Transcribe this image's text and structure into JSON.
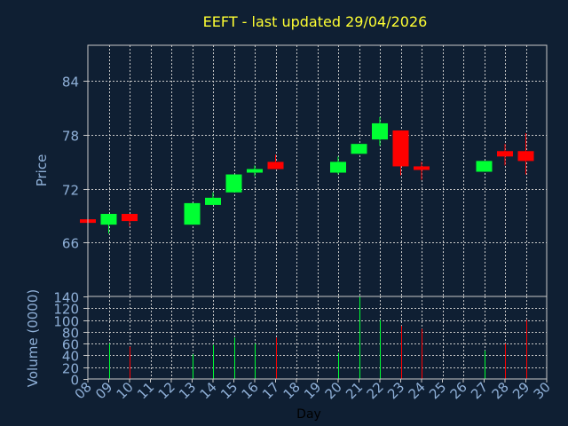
{
  "chart_data": [
    {
      "type": "candlestick",
      "title": "EEFT - last updated 29/04/2026",
      "ylabel": "Price",
      "ylim": [
        60,
        88
      ],
      "yticks": [
        66,
        72,
        78,
        84
      ],
      "grid": true,
      "colors": {
        "up": "#00ff33",
        "down": "#ff0000",
        "title": "#ffff33",
        "axis_text": "#8fb0d8",
        "grid": "#c8c8c8",
        "background": "#0f1f33"
      },
      "candles": [
        {
          "day": 8,
          "open": 68.6,
          "close": 68.2,
          "high": 68.6,
          "low": 68.2
        },
        {
          "day": 9,
          "open": 68.0,
          "close": 69.2,
          "high": 69.2,
          "low": 67.0
        },
        {
          "day": 10,
          "open": 69.2,
          "close": 68.4,
          "high": 69.2,
          "low": 67.8
        },
        {
          "day": 13,
          "open": 68.0,
          "close": 70.4,
          "high": 70.4,
          "low": 68.0
        },
        {
          "day": 14,
          "open": 70.2,
          "close": 71.0,
          "high": 71.6,
          "low": 70.2
        },
        {
          "day": 15,
          "open": 71.6,
          "close": 73.6,
          "high": 73.6,
          "low": 71.6
        },
        {
          "day": 16,
          "open": 73.8,
          "close": 74.2,
          "high": 74.6,
          "low": 73.4
        },
        {
          "day": 17,
          "open": 75.0,
          "close": 74.2,
          "high": 75.8,
          "low": 74.2
        },
        {
          "day": 20,
          "open": 73.8,
          "close": 75.0,
          "high": 75.6,
          "low": 73.6
        },
        {
          "day": 21,
          "open": 75.9,
          "close": 77.0,
          "high": 77.0,
          "low": 75.9
        },
        {
          "day": 22,
          "open": 77.5,
          "close": 79.3,
          "high": 80.0,
          "low": 76.8
        },
        {
          "day": 23,
          "open": 78.5,
          "close": 74.5,
          "high": 78.5,
          "low": 73.5
        },
        {
          "day": 24,
          "open": 74.5,
          "close": 74.1,
          "high": 75.0,
          "low": 73.0
        },
        {
          "day": 27,
          "open": 73.9,
          "close": 75.1,
          "high": 75.1,
          "low": 73.9
        },
        {
          "day": 28,
          "open": 76.2,
          "close": 75.6,
          "high": 77.0,
          "low": 74.6
        },
        {
          "day": 29,
          "open": 76.2,
          "close": 75.1,
          "high": 78.2,
          "low": 73.6
        }
      ]
    },
    {
      "type": "bar",
      "ylabel": "Volume (0000)",
      "xlabel": "Day",
      "ylim": [
        0,
        140
      ],
      "yticks": [
        0,
        20,
        40,
        60,
        80,
        100,
        120,
        140
      ],
      "x_tick_labels": [
        "08",
        "09",
        "10",
        "11",
        "12",
        "13",
        "14",
        "15",
        "16",
        "17",
        "18",
        "19",
        "20",
        "21",
        "22",
        "23",
        "24",
        "25",
        "26",
        "27",
        "28",
        "29",
        "30"
      ],
      "bars": [
        {
          "day": 9,
          "value": 60,
          "direction": "up"
        },
        {
          "day": 10,
          "value": 55,
          "direction": "down"
        },
        {
          "day": 13,
          "value": 42,
          "direction": "up"
        },
        {
          "day": 14,
          "value": 58,
          "direction": "up"
        },
        {
          "day": 15,
          "value": 70,
          "direction": "up"
        },
        {
          "day": 16,
          "value": 60,
          "direction": "up"
        },
        {
          "day": 17,
          "value": 70,
          "direction": "down"
        },
        {
          "day": 20,
          "value": 44,
          "direction": "up"
        },
        {
          "day": 21,
          "value": 140,
          "direction": "up"
        },
        {
          "day": 22,
          "value": 100,
          "direction": "up"
        },
        {
          "day": 23,
          "value": 90,
          "direction": "down"
        },
        {
          "day": 24,
          "value": 85,
          "direction": "down"
        },
        {
          "day": 27,
          "value": 48,
          "direction": "up"
        },
        {
          "day": 28,
          "value": 60,
          "direction": "down"
        },
        {
          "day": 29,
          "value": 100,
          "direction": "down"
        }
      ]
    }
  ]
}
